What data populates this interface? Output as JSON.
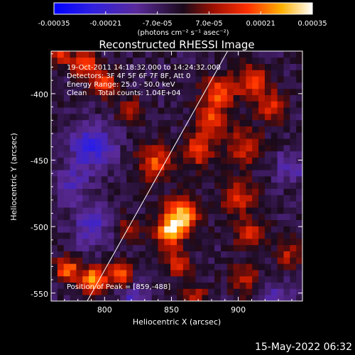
{
  "chart_data": {
    "type": "heatmap",
    "title": "Reconstructed RHESSI Image",
    "xlabel": "Heliocentric X (arcsec)",
    "ylabel": "Heliocentric Y (arcsec)",
    "xlim": [
      760,
      948
    ],
    "ylim": [
      -556,
      -368
    ],
    "x_ticks": [
      800,
      850,
      900
    ],
    "x_tick_labels": [
      "800",
      "850",
      "900"
    ],
    "y_ticks": [
      -400,
      -450,
      -500,
      -550
    ],
    "y_tick_labels": [
      "-400",
      "-450",
      "-500",
      "-550"
    ],
    "colorbar": {
      "vmin": -0.00035,
      "vmax": 0.00035,
      "ticks": [
        -0.00035,
        -0.00021,
        -7e-05,
        7e-05,
        0.00021,
        0.00035
      ],
      "tick_labels": [
        "-0.00035",
        "-0.00021",
        "-7.0e-05",
        "7.0e-05",
        "0.00021",
        "0.00035"
      ],
      "unit_label": "(photons cm⁻² s⁻¹ asec⁻²)"
    },
    "annotations": [
      "19-Oct-2011 14:18:32.000 to 14:24:32.000",
      "Detectors: 3F 4F 5F 6F 7F 8F, Att 0",
      "Energy Range: 25.0 - 50.0 keV",
      "Clean     Total counts: 1.04E+04",
      "Position of Peak = [859,-488]"
    ],
    "peak": [
      859,
      -488
    ],
    "limb_line": {
      "from": [
        787,
        -556
      ],
      "to": [
        892,
        -368
      ]
    },
    "sources": [
      {
        "x": 857,
        "y": -492,
        "peak": 0.00035,
        "sigma": 9
      },
      {
        "x": 848,
        "y": -505,
        "peak": 0.00028,
        "sigma": 7
      },
      {
        "x": 838,
        "y": -452,
        "peak": 0.00022,
        "sigma": 9
      },
      {
        "x": 870,
        "y": -443,
        "peak": 0.0002,
        "sigma": 8
      },
      {
        "x": 880,
        "y": -420,
        "peak": 0.0002,
        "sigma": 9
      },
      {
        "x": 885,
        "y": -398,
        "peak": 0.00022,
        "sigma": 8
      },
      {
        "x": 910,
        "y": -390,
        "peak": 0.0002,
        "sigma": 9
      },
      {
        "x": 925,
        "y": -410,
        "peak": 0.00018,
        "sigma": 8
      },
      {
        "x": 905,
        "y": -440,
        "peak": 0.00018,
        "sigma": 9
      },
      {
        "x": 900,
        "y": -478,
        "peak": 0.00018,
        "sigma": 9
      },
      {
        "x": 908,
        "y": -505,
        "peak": 0.00016,
        "sigma": 8
      },
      {
        "x": 800,
        "y": -392,
        "peak": 0.0002,
        "sigma": 7
      },
      {
        "x": 785,
        "y": -378,
        "peak": 0.00026,
        "sigma": 6
      },
      {
        "x": 768,
        "y": -372,
        "peak": 0.00022,
        "sigma": 5
      },
      {
        "x": 772,
        "y": -532,
        "peak": 0.00028,
        "sigma": 6
      },
      {
        "x": 792,
        "y": -540,
        "peak": 0.0003,
        "sigma": 7
      },
      {
        "x": 812,
        "y": -536,
        "peak": 0.00024,
        "sigma": 6
      },
      {
        "x": 855,
        "y": -528,
        "peak": 0.00016,
        "sigma": 7
      },
      {
        "x": 868,
        "y": -552,
        "peak": 0.00016,
        "sigma": 6
      },
      {
        "x": 905,
        "y": -540,
        "peak": 0.00014,
        "sigma": 8
      },
      {
        "x": 938,
        "y": -520,
        "peak": 0.00014,
        "sigma": 7
      },
      {
        "x": 820,
        "y": -412,
        "peak": 0.00012,
        "sigma": 7
      },
      {
        "x": 818,
        "y": -500,
        "peak": 0.00012,
        "sigma": 7
      },
      {
        "x": 790,
        "y": -500,
        "peak": -0.00014,
        "sigma": 10
      },
      {
        "x": 790,
        "y": -440,
        "peak": -0.00018,
        "sigma": 12
      },
      {
        "x": 775,
        "y": -470,
        "peak": -0.00012,
        "sigma": 9
      },
      {
        "x": 822,
        "y": -555,
        "peak": -0.00014,
        "sigma": 8
      },
      {
        "x": 930,
        "y": -555,
        "peak": -0.00012,
        "sigma": 9
      },
      {
        "x": 940,
        "y": -455,
        "peak": -0.0001,
        "sigma": 9
      }
    ],
    "grid": false
  },
  "footer": {
    "datestamp": "15-May-2022 06:32"
  }
}
